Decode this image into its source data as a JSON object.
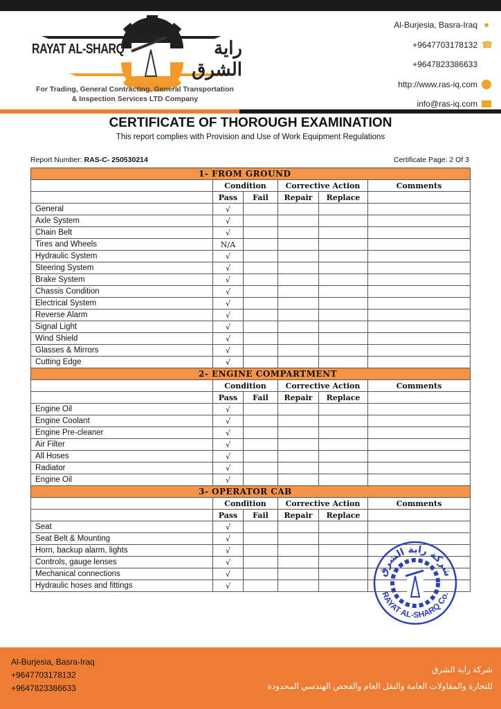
{
  "header": {
    "logo_text_en": "RAYAT AL-SHARQ",
    "logo_text_ar": "راية الشرق",
    "tagline_1": "For Trading, General Contracting, General Transportation",
    "tagline_2": "& Inspection Services LTD Company",
    "contacts": [
      {
        "text": "Al-Burjesia, Basra-Iraq",
        "icon": "location-pin-icon"
      },
      {
        "text": "+9647703178132",
        "icon": "phone-icon"
      },
      {
        "text": "+9647823386633",
        "icon": ""
      },
      {
        "text": "http://www.ras-iq.com",
        "icon": "globe-icon"
      },
      {
        "text": "info@ras-iq.com",
        "icon": "mail-icon"
      }
    ]
  },
  "document": {
    "title": "CERTIFICATE OF THOROUGH EXAMINATION",
    "subtitle": "This report complies with Provision and Use of Work Equipment Regulations",
    "report_label": "Report Number:",
    "report_number": "RAS-C- 250530214",
    "certificate_page": "Certificate Page: 2 Of 3"
  },
  "table": {
    "headers": {
      "condition": "Condition",
      "corrective": "Corrective Action",
      "comments": "Comments",
      "pass": "Pass",
      "fail": "Fail",
      "repair": "Repair",
      "replace": "Replace"
    },
    "sections": [
      {
        "title": "1-  FROM GROUND",
        "items": [
          {
            "label": "General",
            "pass": "√"
          },
          {
            "label": "Axle System",
            "pass": "√"
          },
          {
            "label": "Chain Belt",
            "pass": "√"
          },
          {
            "label": "Tires and Wheels",
            "pass": "N/A"
          },
          {
            "label": "Hydraulic System",
            "pass": "√"
          },
          {
            "label": "Steering System",
            "pass": "√"
          },
          {
            "label": "Brake System",
            "pass": "√"
          },
          {
            "label": "Chassis Condition",
            "pass": "√"
          },
          {
            "label": "Electrical System",
            "pass": "√"
          },
          {
            "label": "Reverse Alarm",
            "pass": "√"
          },
          {
            "label": "Signal Light",
            "pass": "√"
          },
          {
            "label": "Wind Shield",
            "pass": "√"
          },
          {
            "label": "Glasses & Mirrors",
            "pass": "√"
          },
          {
            "label": "Cutting Edge",
            "pass": "√"
          }
        ]
      },
      {
        "title": "2-  ENGINE COMPARTMENT",
        "items": [
          {
            "label": "Engine Oil",
            "pass": "√"
          },
          {
            "label": "Engine Coolant",
            "pass": "√"
          },
          {
            "label": "Engine Pre-cleaner",
            "pass": "√"
          },
          {
            "label": "Air Filter",
            "pass": "√"
          },
          {
            "label": "All Hoses",
            "pass": "√"
          },
          {
            "label": "Radiator",
            "pass": "√"
          },
          {
            "label": "Engine Oil",
            "pass": "√"
          }
        ]
      },
      {
        "title": "3-  OPERATOR CAB",
        "items": [
          {
            "label": "Seat",
            "pass": "√"
          },
          {
            "label": "Seat Belt & Mounting",
            "pass": "√"
          },
          {
            "label": "Horn, backup alarm, lights",
            "pass": "√"
          },
          {
            "label": "Controls, gauge lenses",
            "pass": "√"
          },
          {
            "label": "Mechanical connections",
            "pass": "√"
          },
          {
            "label": "Hydraulic hoses and fittings",
            "pass": "√"
          }
        ]
      }
    ]
  },
  "stamp": {
    "text_ar": "شركة راية الشرق",
    "text_en": "RAYAT AL-SHARQ Co.",
    "color": "#2a3fb8"
  },
  "footer": {
    "address": "Al-Burjesia, Basra-Iraq",
    "phone_1": "+9647703178132",
    "phone_2": "+9647823386633",
    "ar_line_1": "شركة راية الشرق",
    "ar_line_2": "للتجارة والمقاولات العامة والنقل العام والفحص الهندسي المحدودة"
  },
  "colors": {
    "accent": "#ef7d32",
    "section_header": "#f59448",
    "dark": "#1a1a1a"
  }
}
